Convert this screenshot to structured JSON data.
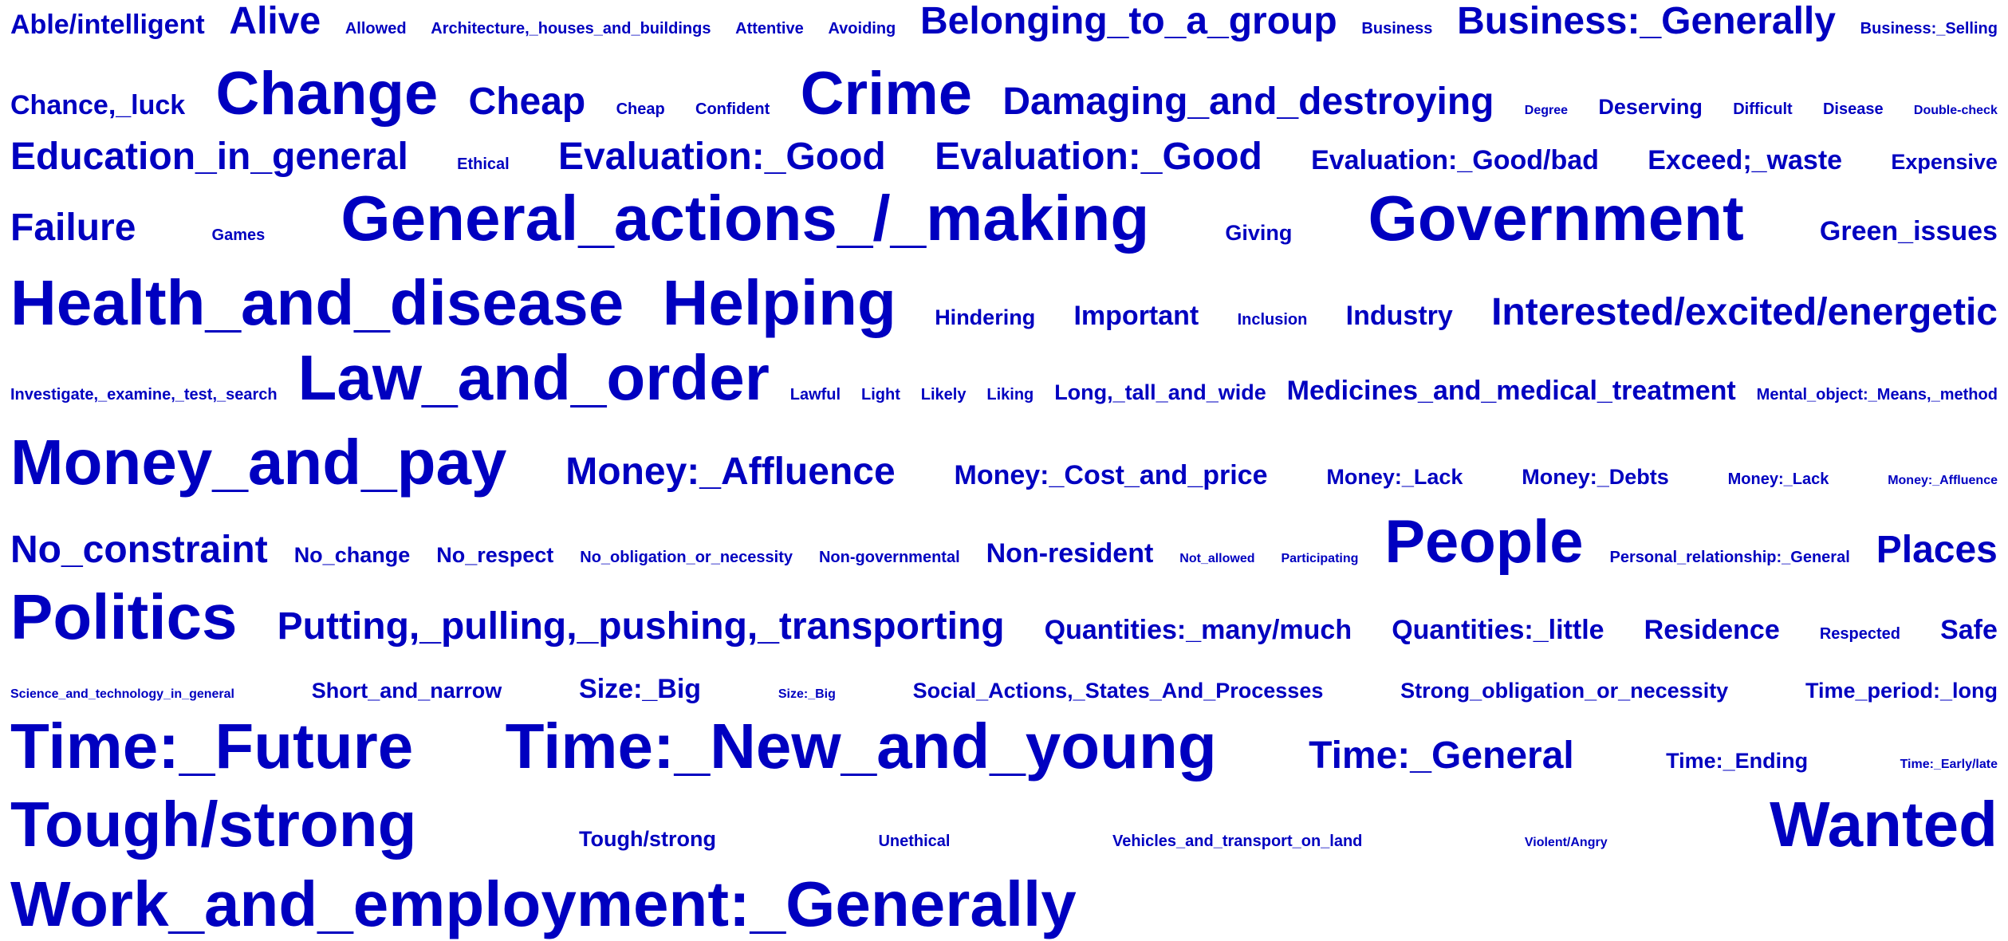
{
  "word_color": "#0000c0",
  "background": "#ffffff",
  "rows": [
    {
      "words": [
        {
          "text": "Able/intelligent",
          "weight": 3
        },
        {
          "text": "Alive",
          "weight": 5
        },
        {
          "text": "Allowed",
          "weight": 1
        },
        {
          "text": "Architecture,_houses_and_buildings",
          "weight": 1
        },
        {
          "text": "Attentive",
          "weight": 1
        },
        {
          "text": "Avoiding",
          "weight": 1
        },
        {
          "text": "Belonging_to_a_group",
          "weight": 5
        },
        {
          "text": "Business",
          "weight": 1
        },
        {
          "text": "Business:_Generally",
          "weight": 5
        },
        {
          "text": "Business:_Selling",
          "weight": 1
        }
      ]
    },
    {
      "words": [
        {
          "text": "Chance,_luck",
          "weight": 3
        },
        {
          "text": "Change",
          "weight": 8
        },
        {
          "text": "Cheap",
          "weight": 5
        },
        {
          "text": "Cheap",
          "weight": 1
        },
        {
          "text": "Confident",
          "weight": 1
        },
        {
          "text": "Crime",
          "weight": 8
        },
        {
          "text": "Damaging_and_destroying",
          "weight": 5
        },
        {
          "text": "Degree",
          "weight": 0
        },
        {
          "text": "Deserving",
          "weight": 2
        },
        {
          "text": "Difficult",
          "weight": 1
        },
        {
          "text": "Disease",
          "weight": 1
        },
        {
          "text": "Double-check",
          "weight": 0
        }
      ]
    },
    {
      "words": [
        {
          "text": "Education_in_general",
          "weight": 5
        },
        {
          "text": "Ethical",
          "weight": 1
        },
        {
          "text": "Evaluation:_Good",
          "weight": 5
        },
        {
          "text": "Evaluation:_Good",
          "weight": 5
        },
        {
          "text": "Evaluation:_Good/bad",
          "weight": 3
        },
        {
          "text": "Exceed;_waste",
          "weight": 3
        },
        {
          "text": "Expensive",
          "weight": 2
        }
      ]
    },
    {
      "words": [
        {
          "text": "Failure",
          "weight": 5
        },
        {
          "text": "Games",
          "weight": 1
        },
        {
          "text": "General_actions_/_making",
          "weight": 9
        },
        {
          "text": "Giving",
          "weight": 2
        },
        {
          "text": "Government",
          "weight": 9
        },
        {
          "text": "Green_issues",
          "weight": 3
        }
      ]
    },
    {
      "words": [
        {
          "text": "Health_and_disease",
          "weight": 9
        },
        {
          "text": "Helping",
          "weight": 9
        },
        {
          "text": "Hindering",
          "weight": 2
        },
        {
          "text": "Important",
          "weight": 3
        },
        {
          "text": "Inclusion",
          "weight": 1
        },
        {
          "text": "Industry",
          "weight": 3
        },
        {
          "text": "Interested/excited/energetic",
          "weight": 5
        }
      ]
    },
    {
      "words": [
        {
          "text": "Investigate,_examine,_test,_search",
          "weight": 1
        },
        {
          "text": "Law_and_order",
          "weight": 9
        },
        {
          "text": "Lawful",
          "weight": 1
        },
        {
          "text": "Light",
          "weight": 1
        },
        {
          "text": "Likely",
          "weight": 1
        },
        {
          "text": "Liking",
          "weight": 1
        },
        {
          "text": "Long,_tall_and_wide",
          "weight": 2
        },
        {
          "text": "Medicines_and_medical_treatment",
          "weight": 3
        },
        {
          "text": "Mental_object:_Means,_method",
          "weight": 1
        }
      ]
    },
    {
      "words": [
        {
          "text": "Money_and_pay",
          "weight": 9
        },
        {
          "text": "Money:_Affluence",
          "weight": 5
        },
        {
          "text": "Money:_Cost_and_price",
          "weight": 3
        },
        {
          "text": "Money:_Lack",
          "weight": 2
        },
        {
          "text": "Money:_Debts",
          "weight": 2
        },
        {
          "text": "Money:_Lack",
          "weight": 1
        },
        {
          "text": "Money:_Affluence",
          "weight": 0
        }
      ]
    },
    {
      "words": [
        {
          "text": "No_constraint",
          "weight": 5
        },
        {
          "text": "No_change",
          "weight": 2
        },
        {
          "text": "No_respect",
          "weight": 2
        },
        {
          "text": "No_obligation_or_necessity",
          "weight": 1
        },
        {
          "text": "Non-governmental",
          "weight": 1
        },
        {
          "text": "Non-resident",
          "weight": 3
        },
        {
          "text": "Not_allowed",
          "weight": 0
        },
        {
          "text": "Participating",
          "weight": 0
        },
        {
          "text": "People",
          "weight": 8
        },
        {
          "text": "Personal_relationship:_General",
          "weight": 1
        },
        {
          "text": "Places",
          "weight": 5
        }
      ]
    },
    {
      "words": [
        {
          "text": "Politics",
          "weight": 9
        },
        {
          "text": "Putting,_pulling,_pushing,_transporting",
          "weight": 5
        },
        {
          "text": "Quantities:_many/much",
          "weight": 3
        },
        {
          "text": "Quantities:_little",
          "weight": 3
        },
        {
          "text": "Residence",
          "weight": 3
        },
        {
          "text": "Respected",
          "weight": 1
        },
        {
          "text": "Safe",
          "weight": 3
        }
      ]
    },
    {
      "words": [
        {
          "text": "Science_and_technology_in_general",
          "weight": 0
        },
        {
          "text": "Short_and_narrow",
          "weight": 2
        },
        {
          "text": "Size:_Big",
          "weight": 3
        },
        {
          "text": "Size:_Big",
          "weight": 0
        },
        {
          "text": "Social_Actions,_States_And_Processes",
          "weight": 2
        },
        {
          "text": "Strong_obligation_or_necessity",
          "weight": 2
        },
        {
          "text": "Time_period:_long",
          "weight": 2
        }
      ]
    },
    {
      "words": [
        {
          "text": "Time:_Future",
          "weight": 9
        },
        {
          "text": "Time:_New_and_young",
          "weight": 9
        },
        {
          "text": "Time:_General",
          "weight": 5
        },
        {
          "text": "Time:_Ending",
          "weight": 2
        },
        {
          "text": "Time:_Early/late",
          "weight": 0
        }
      ]
    },
    {
      "words": [
        {
          "text": "Tough/strong",
          "weight": 9
        },
        {
          "text": "Tough/strong",
          "weight": 2
        },
        {
          "text": "Unethical",
          "weight": 1
        },
        {
          "text": "Vehicles_and_transport_on_land",
          "weight": 1
        },
        {
          "text": "Violent/Angry",
          "weight": 0
        },
        {
          "text": "Wanted",
          "weight": 9
        }
      ]
    },
    {
      "words": [
        {
          "text": "Work_and_employment:_Generally",
          "weight": 9
        }
      ]
    }
  ]
}
